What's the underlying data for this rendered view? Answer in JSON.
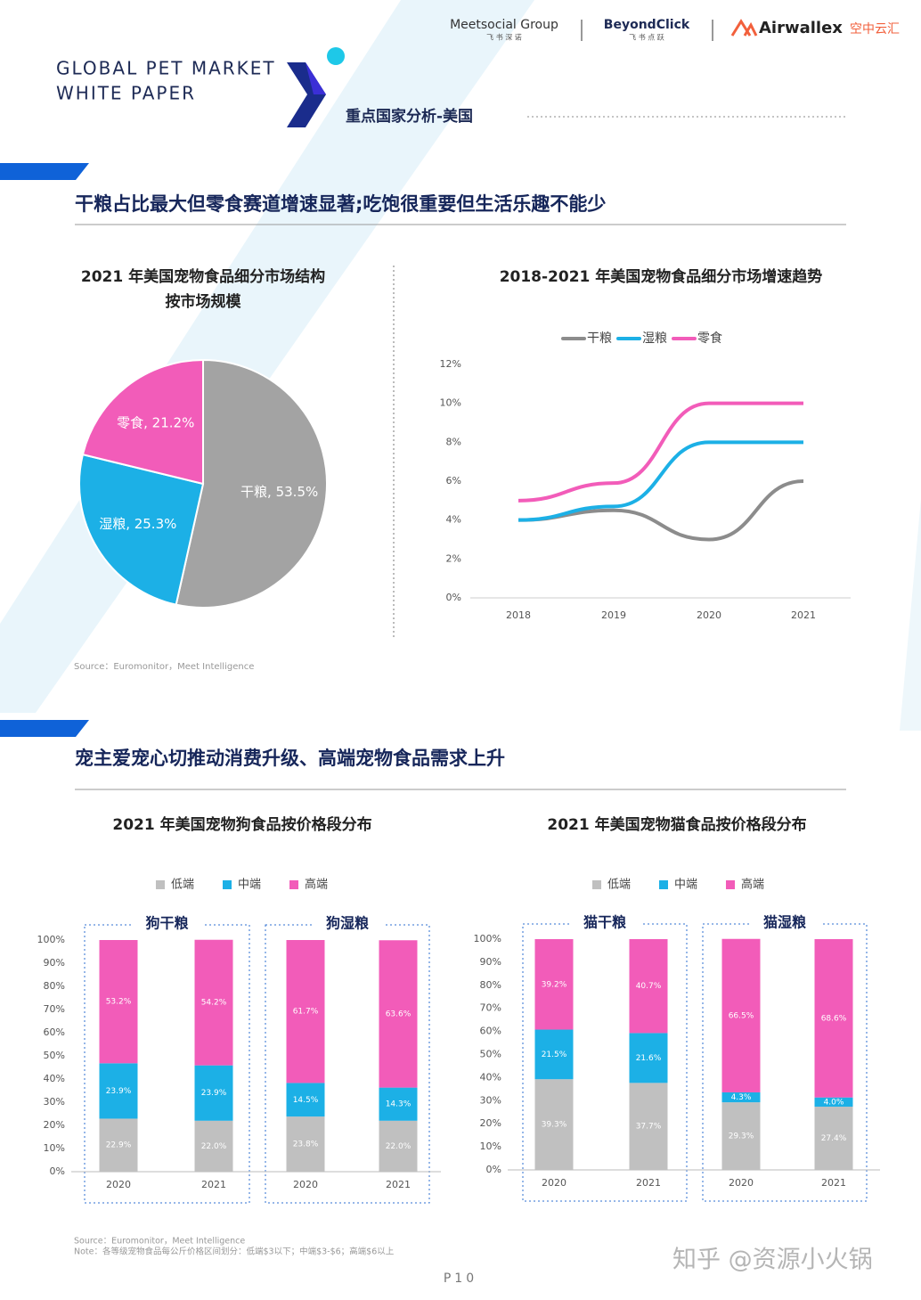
{
  "header": {
    "title_lines": [
      "GLOBAL PET MARKET",
      "WHITE PAPER"
    ],
    "section": "重点国家分析-美国",
    "logos": [
      "Meetsocial Group",
      "飞 书 深 诺",
      "BeyondClick",
      "飞 书 点 跃",
      "Airwallex",
      "空中云汇"
    ]
  },
  "sections": [
    {
      "heading": "干粮占比最大但零食赛道增速显著;吃饱很重要但生活乐趣不能少"
    },
    {
      "heading": "宠主爱宠心切推动消费升级、高端宠物食品需求上升"
    }
  ],
  "chart_data": [
    {
      "type": "pie",
      "title": "2021 年美国宠物食品细分市场结构",
      "subtitle": "按市场规模",
      "values": [
        53.5,
        25.3,
        21.2
      ],
      "value_labels": [
        "干粮, 53.5%",
        "湿粮, 25.3%",
        "零食, 21.2%"
      ],
      "colors": [
        "#a3a3a3",
        "#1cb0e6",
        "#f25cb9"
      ]
    },
    {
      "type": "line",
      "title": "2018-2021 年美国宠物食品细分市场增速趋势",
      "categories": [
        "2018",
        "2019",
        "2020",
        "2021"
      ],
      "series": [
        {
          "name": "干粮",
          "color": "#8c8c8c",
          "values": [
            4,
            4.5,
            3,
            6
          ]
        },
        {
          "name": "湿粮",
          "color": "#1cb0e6",
          "values": [
            4,
            4.7,
            8,
            8
          ]
        },
        {
          "name": "零食",
          "color": "#f25cb9",
          "values": [
            5,
            5.9,
            10,
            10
          ]
        }
      ],
      "ylim": [
        0,
        12
      ],
      "yticks": [
        {
          "value": 0,
          "label": "0%"
        },
        {
          "value": 2,
          "label": "2%"
        },
        {
          "value": 4,
          "label": "4%"
        },
        {
          "value": 6,
          "label": "6%"
        },
        {
          "value": 8,
          "label": "8%"
        },
        {
          "value": 10,
          "label": "10%"
        },
        {
          "value": 12,
          "label": "12%"
        }
      ],
      "legend": "top",
      "grid": false
    },
    {
      "type": "bar",
      "stacked": true,
      "title": "2021 年美国宠物狗食品按价格段分布",
      "groups": [
        "狗干粮",
        "狗湿粮"
      ],
      "categories": [
        "2020",
        "2021",
        "2020",
        "2021"
      ],
      "series": [
        {
          "name": "低端",
          "color": "#c0c0c0",
          "values": [
            22.9,
            22.0,
            23.8,
            22.0
          ],
          "value_labels": [
            "22.9%",
            "22.0%",
            "23.8%",
            "22.0%"
          ]
        },
        {
          "name": "中端",
          "color": "#1cb0e6",
          "values": [
            23.9,
            23.9,
            14.5,
            14.3
          ],
          "value_labels": [
            "23.9%",
            "23.9%",
            "14.5%",
            "14.3%"
          ]
        },
        {
          "name": "高端",
          "color": "#f25cb9",
          "values": [
            53.2,
            54.2,
            61.7,
            63.6
          ],
          "value_labels": [
            "53.2%",
            "54.2%",
            "61.7%",
            "63.6%"
          ]
        }
      ],
      "ylim": [
        0,
        100
      ],
      "yticks": [
        {
          "value": 0,
          "label": "0%"
        },
        {
          "value": 10,
          "label": "10%"
        },
        {
          "value": 20,
          "label": "20%"
        },
        {
          "value": 30,
          "label": "30%"
        },
        {
          "value": 40,
          "label": "40%"
        },
        {
          "value": 50,
          "label": "50%"
        },
        {
          "value": 60,
          "label": "60%"
        },
        {
          "value": 70,
          "label": "70%"
        },
        {
          "value": 80,
          "label": "80%"
        },
        {
          "value": 90,
          "label": "90%"
        },
        {
          "value": 100,
          "label": "100%"
        }
      ],
      "legend": "top"
    },
    {
      "type": "bar",
      "stacked": true,
      "title": "2021 年美国宠物猫食品按价格段分布",
      "groups": [
        "猫干粮",
        "猫湿粮"
      ],
      "categories": [
        "2020",
        "2021",
        "2020",
        "2021"
      ],
      "series": [
        {
          "name": "低端",
          "color": "#c0c0c0",
          "values": [
            39.3,
            37.7,
            29.3,
            27.4
          ],
          "value_labels": [
            "39.3%",
            "37.7%",
            "29.3%",
            "27.4%"
          ]
        },
        {
          "name": "中端",
          "color": "#1cb0e6",
          "values": [
            21.5,
            21.6,
            4.3,
            4.0
          ],
          "value_labels": [
            "21.5%",
            "21.6%",
            "4.3%",
            "4.0%"
          ]
        },
        {
          "name": "高端",
          "color": "#f25cb9",
          "values": [
            39.2,
            40.7,
            66.5,
            68.6
          ],
          "value_labels": [
            "39.2%",
            "40.7%",
            "66.5%",
            "68.6%"
          ]
        }
      ],
      "ylim": [
        0,
        100
      ],
      "yticks": [
        {
          "value": 0,
          "label": "0%"
        },
        {
          "value": 10,
          "label": "10%"
        },
        {
          "value": 20,
          "label": "20%"
        },
        {
          "value": 30,
          "label": "30%"
        },
        {
          "value": 40,
          "label": "40%"
        },
        {
          "value": 50,
          "label": "50%"
        },
        {
          "value": 60,
          "label": "60%"
        },
        {
          "value": 70,
          "label": "70%"
        },
        {
          "value": 80,
          "label": "80%"
        },
        {
          "value": 90,
          "label": "90%"
        },
        {
          "value": 100,
          "label": "100%"
        }
      ],
      "legend": "top"
    }
  ],
  "sources": [
    "Source：Euromonitor，Meet Intelligence",
    "Source：Euromonitor，Meet Intelligence",
    "Note：各等级宠物食品每公斤价格区间划分：低端$3以下；中端$3-$6；高端$6以上"
  ],
  "page": "P10",
  "watermark": "知乎 @资源小火锅"
}
